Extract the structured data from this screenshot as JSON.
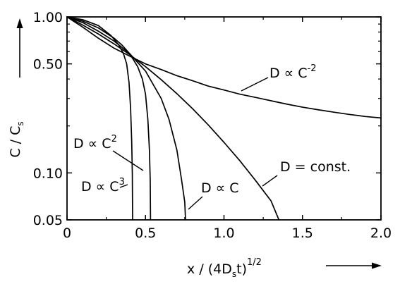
{
  "chart_data": {
    "type": "line",
    "title": "",
    "xlabel": {
      "full": "x/(4Dst)1/2",
      "main_pre": "x / (4D",
      "sub": "s",
      "main_post": "t)",
      "sup": "1/2"
    },
    "ylabel": {
      "full": "C/Cs",
      "main": "C / C",
      "sub": "s"
    },
    "x_scale": "linear",
    "y_scale": "log",
    "xlim": [
      0,
      2.0
    ],
    "ylim": [
      0.05,
      1.0
    ],
    "x_ticks": [
      {
        "value": 0,
        "label": "0"
      },
      {
        "value": 0.5,
        "label": "0.5"
      },
      {
        "value": 1.0,
        "label": "1.0"
      },
      {
        "value": 1.5,
        "label": "1.5"
      },
      {
        "value": 2.0,
        "label": "2.0"
      }
    ],
    "y_ticks": [
      {
        "value": 1.0,
        "label": "1.00"
      },
      {
        "value": 0.5,
        "label": "0.50"
      },
      {
        "value": 0.1,
        "label": "0.10"
      },
      {
        "value": 0.05,
        "label": "0.05"
      }
    ],
    "grid": false,
    "legend": "none",
    "series": [
      {
        "name": "D ∝ C⁻²",
        "label": {
          "main": "D ∝ C",
          "sup": "-2"
        },
        "points": [
          [
            0,
            1.0
          ],
          [
            0.1,
            0.86
          ],
          [
            0.2,
            0.73
          ],
          [
            0.3,
            0.63
          ],
          [
            0.4,
            0.56
          ],
          [
            0.5,
            0.5
          ],
          [
            0.6,
            0.46
          ],
          [
            0.7,
            0.42
          ],
          [
            0.8,
            0.39
          ],
          [
            0.9,
            0.36
          ],
          [
            1.0,
            0.34
          ],
          [
            1.1,
            0.32
          ],
          [
            1.2,
            0.305
          ],
          [
            1.3,
            0.29
          ],
          [
            1.4,
            0.276
          ],
          [
            1.5,
            0.264
          ],
          [
            1.6,
            0.254
          ],
          [
            1.7,
            0.245
          ],
          [
            1.8,
            0.237
          ],
          [
            1.9,
            0.23
          ],
          [
            2.0,
            0.225
          ]
        ]
      },
      {
        "name": "D = const.",
        "label": {
          "main": "D = const.",
          "sup": ""
        },
        "points": [
          [
            0,
            1.0
          ],
          [
            0.1,
            0.887
          ],
          [
            0.2,
            0.777
          ],
          [
            0.3,
            0.671
          ],
          [
            0.4,
            0.572
          ],
          [
            0.5,
            0.48
          ],
          [
            0.6,
            0.396
          ],
          [
            0.7,
            0.322
          ],
          [
            0.8,
            0.258
          ],
          [
            0.9,
            0.203
          ],
          [
            1.0,
            0.157
          ],
          [
            1.1,
            0.12
          ],
          [
            1.2,
            0.0897
          ],
          [
            1.3,
            0.0661
          ],
          [
            1.35,
            0.05
          ]
        ]
      },
      {
        "name": "D ∝ C",
        "label": {
          "main": "D ∝ C",
          "sup": ""
        },
        "points": [
          [
            0,
            1.0
          ],
          [
            0.1,
            0.92
          ],
          [
            0.2,
            0.81
          ],
          [
            0.3,
            0.7
          ],
          [
            0.4,
            0.58
          ],
          [
            0.5,
            0.45
          ],
          [
            0.6,
            0.3
          ],
          [
            0.65,
            0.22
          ],
          [
            0.7,
            0.14
          ],
          [
            0.73,
            0.09
          ],
          [
            0.75,
            0.065
          ],
          [
            0.755,
            0.05
          ]
        ]
      },
      {
        "name": "D ∝ C²",
        "label": {
          "main": "D ∝ C",
          "sup": "2"
        },
        "points": [
          [
            0,
            1.0
          ],
          [
            0.1,
            0.94
          ],
          [
            0.2,
            0.85
          ],
          [
            0.3,
            0.73
          ],
          [
            0.35,
            0.66
          ],
          [
            0.4,
            0.58
          ],
          [
            0.45,
            0.48
          ],
          [
            0.48,
            0.4
          ],
          [
            0.5,
            0.32
          ],
          [
            0.515,
            0.22
          ],
          [
            0.525,
            0.14
          ],
          [
            0.53,
            0.09
          ],
          [
            0.532,
            0.05
          ]
        ]
      },
      {
        "name": "D ∝ C³",
        "label": {
          "main": "D ∝ C",
          "sup": "3"
        },
        "points": [
          [
            0,
            1.0
          ],
          [
            0.1,
            0.96
          ],
          [
            0.2,
            0.88
          ],
          [
            0.28,
            0.76
          ],
          [
            0.33,
            0.66
          ],
          [
            0.36,
            0.58
          ],
          [
            0.38,
            0.5
          ],
          [
            0.395,
            0.38
          ],
          [
            0.405,
            0.26
          ],
          [
            0.412,
            0.16
          ],
          [
            0.416,
            0.1
          ],
          [
            0.418,
            0.05
          ]
        ]
      }
    ]
  },
  "arrows": {
    "y_axis": "up-arrow-icon",
    "x_axis": "right-arrow-icon"
  },
  "colors": {
    "ink": "#000000",
    "background": "#ffffff"
  }
}
